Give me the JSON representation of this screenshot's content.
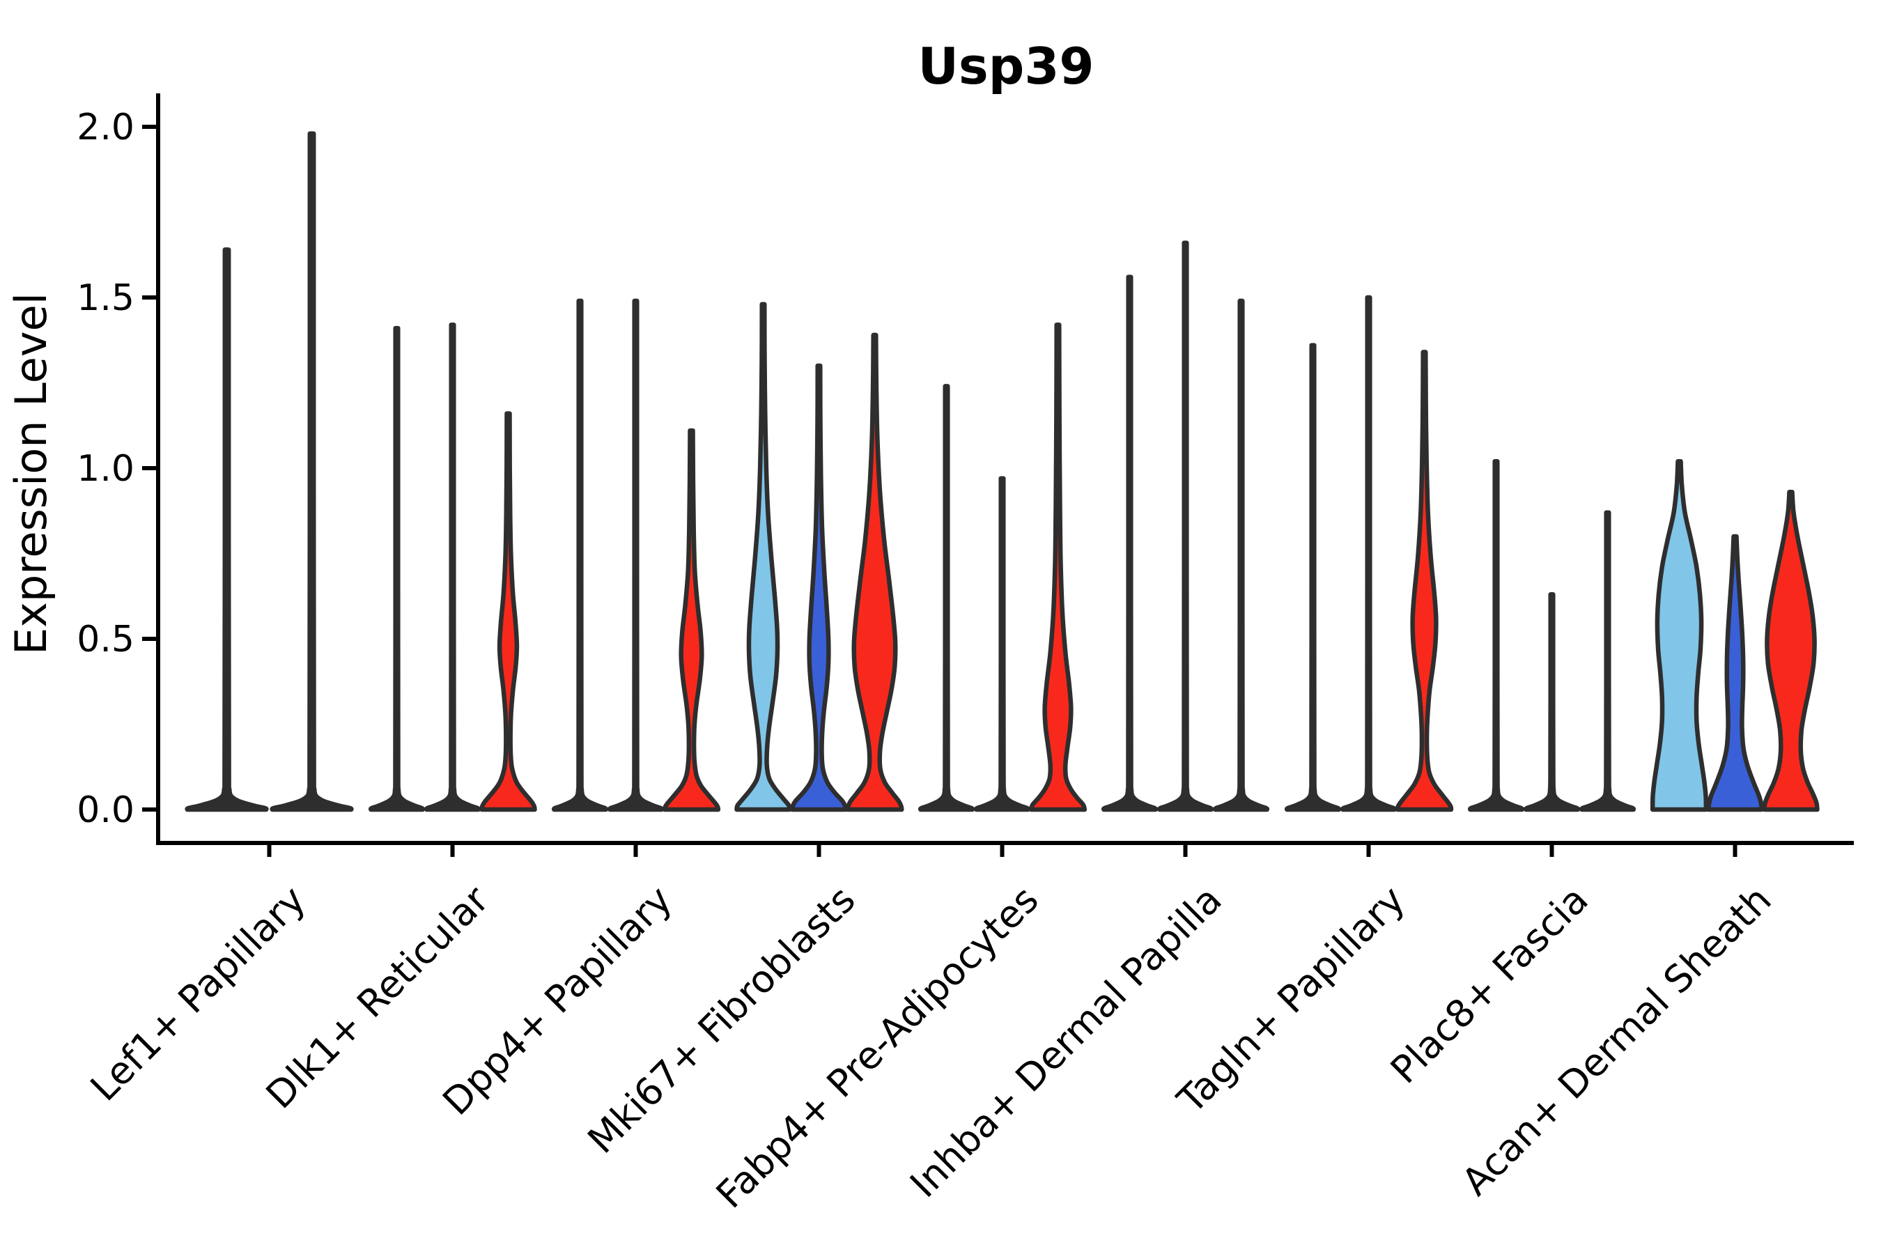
{
  "chart_data": {
    "type": "violin",
    "title": "Usp39",
    "xlabel": "",
    "ylabel": "Expression Level",
    "yticks": [
      "0.0",
      "0.5",
      "1.0",
      "1.5",
      "2.0"
    ],
    "ytick_values": [
      0.0,
      0.5,
      1.0,
      1.5,
      2.0
    ],
    "ylim": [
      0.0,
      2.05
    ],
    "grid": false,
    "legend": "none",
    "categories": [
      "Lef1+ Papillary",
      "Dlk1+ Reticular",
      "Dpp4+ Papillary",
      "Mki67+ Fibroblasts",
      "Fabp4+ Pre-Adipocytes",
      "Inhba+ Dermal Papilla",
      "Tagln+ Papillary",
      "Plac8+ Fascia",
      "Acan+ Dermal Sheath"
    ],
    "colors": {
      "outline": "#2e2e2e",
      "axis": "#000000",
      "red": "#f8291c",
      "light_blue": "#81c5e9",
      "dark_blue": "#3a60d8",
      "spike": "#2e2e2e"
    },
    "spike_flare_profile": [
      [
        0.1,
        0.05
      ],
      [
        0.06,
        0.06
      ],
      [
        0.04,
        0.1
      ],
      [
        0.025,
        0.28
      ],
      [
        0.012,
        0.62
      ],
      [
        0.004,
        0.9
      ],
      [
        0,
        0.93
      ]
    ],
    "groups": [
      {
        "category": "Lef1+ Papillary",
        "violins": [
          {
            "color": "spike",
            "max": 1.64,
            "shape": "spike"
          },
          {
            "color": "spike",
            "max": 1.98,
            "shape": "spike"
          }
        ]
      },
      {
        "category": "Dlk1+ Reticular",
        "violins": [
          {
            "color": "spike",
            "max": 1.41,
            "shape": "spike"
          },
          {
            "color": "spike",
            "max": 1.42,
            "shape": "spike"
          },
          {
            "color": "red",
            "max": 1.16,
            "shape": "body",
            "profile": [
              [
                1.16,
                0.05
              ],
              [
                1.0,
                0.055
              ],
              [
                0.86,
                0.07
              ],
              [
                0.74,
                0.1
              ],
              [
                0.63,
                0.17
              ],
              [
                0.55,
                0.26
              ],
              [
                0.48,
                0.31
              ],
              [
                0.42,
                0.27
              ],
              [
                0.35,
                0.17
              ],
              [
                0.28,
                0.1
              ],
              [
                0.22,
                0.08
              ],
              [
                0.16,
                0.09
              ],
              [
                0.12,
                0.14
              ],
              [
                0.08,
                0.3
              ],
              [
                0.05,
                0.56
              ],
              [
                0.025,
                0.82
              ],
              [
                0.01,
                0.93
              ],
              [
                0,
                0.95
              ]
            ]
          }
        ]
      },
      {
        "category": "Dpp4+ Papillary",
        "violins": [
          {
            "color": "spike",
            "max": 1.49,
            "shape": "spike"
          },
          {
            "color": "spike",
            "max": 1.49,
            "shape": "spike"
          },
          {
            "color": "red",
            "max": 1.11,
            "shape": "body",
            "profile": [
              [
                1.11,
                0.05
              ],
              [
                0.96,
                0.06
              ],
              [
                0.82,
                0.08
              ],
              [
                0.7,
                0.12
              ],
              [
                0.6,
                0.22
              ],
              [
                0.52,
                0.33
              ],
              [
                0.45,
                0.37
              ],
              [
                0.38,
                0.3
              ],
              [
                0.31,
                0.18
              ],
              [
                0.25,
                0.11
              ],
              [
                0.19,
                0.09
              ],
              [
                0.14,
                0.11
              ],
              [
                0.1,
                0.18
              ],
              [
                0.07,
                0.34
              ],
              [
                0.045,
                0.58
              ],
              [
                0.02,
                0.84
              ],
              [
                0.008,
                0.94
              ],
              [
                0,
                0.96
              ]
            ]
          }
        ]
      },
      {
        "category": "Mki67+ Fibroblasts",
        "violins": [
          {
            "color": "light_blue",
            "max": 1.48,
            "shape": "body",
            "profile": [
              [
                1.48,
                0.045
              ],
              [
                1.32,
                0.05
              ],
              [
                1.16,
                0.07
              ],
              [
                1.0,
                0.11
              ],
              [
                0.86,
                0.18
              ],
              [
                0.73,
                0.3
              ],
              [
                0.62,
                0.42
              ],
              [
                0.53,
                0.5
              ],
              [
                0.46,
                0.51
              ],
              [
                0.39,
                0.46
              ],
              [
                0.31,
                0.33
              ],
              [
                0.24,
                0.21
              ],
              [
                0.18,
                0.14
              ],
              [
                0.13,
                0.13
              ],
              [
                0.09,
                0.22
              ],
              [
                0.06,
                0.44
              ],
              [
                0.03,
                0.74
              ],
              [
                0.012,
                0.92
              ],
              [
                0,
                0.95
              ]
            ]
          },
          {
            "color": "dark_blue",
            "max": 1.3,
            "shape": "body",
            "profile": [
              [
                1.3,
                0.045
              ],
              [
                1.14,
                0.05
              ],
              [
                0.98,
                0.07
              ],
              [
                0.83,
                0.11
              ],
              [
                0.7,
                0.19
              ],
              [
                0.59,
                0.28
              ],
              [
                0.5,
                0.34
              ],
              [
                0.43,
                0.34
              ],
              [
                0.36,
                0.28
              ],
              [
                0.29,
                0.18
              ],
              [
                0.23,
                0.12
              ],
              [
                0.17,
                0.1
              ],
              [
                0.12,
                0.14
              ],
              [
                0.08,
                0.3
              ],
              [
                0.05,
                0.56
              ],
              [
                0.025,
                0.84
              ],
              [
                0.01,
                0.94
              ],
              [
                0,
                0.96
              ]
            ]
          },
          {
            "color": "red",
            "max": 1.39,
            "shape": "body",
            "profile": [
              [
                1.39,
                0.045
              ],
              [
                1.24,
                0.06
              ],
              [
                1.08,
                0.1
              ],
              [
                0.93,
                0.19
              ],
              [
                0.79,
                0.34
              ],
              [
                0.67,
                0.52
              ],
              [
                0.57,
                0.66
              ],
              [
                0.49,
                0.74
              ],
              [
                0.42,
                0.72
              ],
              [
                0.35,
                0.6
              ],
              [
                0.28,
                0.42
              ],
              [
                0.22,
                0.27
              ],
              [
                0.17,
                0.19
              ],
              [
                0.12,
                0.2
              ],
              [
                0.08,
                0.36
              ],
              [
                0.05,
                0.62
              ],
              [
                0.025,
                0.86
              ],
              [
                0.01,
                0.95
              ],
              [
                0,
                0.97
              ]
            ]
          }
        ]
      },
      {
        "category": "Fabp4+ Pre-Adipocytes",
        "violins": [
          {
            "color": "spike",
            "max": 1.24,
            "shape": "spike"
          },
          {
            "color": "spike",
            "max": 0.97,
            "shape": "spike"
          },
          {
            "color": "red",
            "max": 1.42,
            "shape": "body",
            "profile": [
              [
                1.42,
                0.045
              ],
              [
                1.24,
                0.05
              ],
              [
                1.05,
                0.06
              ],
              [
                0.88,
                0.075
              ],
              [
                0.72,
                0.1
              ],
              [
                0.58,
                0.16
              ],
              [
                0.46,
                0.27
              ],
              [
                0.37,
                0.4
              ],
              [
                0.3,
                0.47
              ],
              [
                0.24,
                0.44
              ],
              [
                0.18,
                0.34
              ],
              [
                0.13,
                0.27
              ],
              [
                0.09,
                0.3
              ],
              [
                0.06,
                0.46
              ],
              [
                0.035,
                0.68
              ],
              [
                0.015,
                0.9
              ],
              [
                0,
                0.96
              ]
            ]
          }
        ]
      },
      {
        "category": "Inhba+ Dermal Papilla",
        "violins": [
          {
            "color": "spike",
            "max": 1.56,
            "shape": "spike"
          },
          {
            "color": "spike",
            "max": 1.66,
            "shape": "spike"
          },
          {
            "color": "spike",
            "max": 1.49,
            "shape": "spike"
          }
        ]
      },
      {
        "category": "Tagln+ Papillary",
        "violins": [
          {
            "color": "spike",
            "max": 1.36,
            "shape": "spike"
          },
          {
            "color": "spike",
            "max": 1.5,
            "shape": "spike"
          },
          {
            "color": "red",
            "max": 1.34,
            "shape": "body",
            "profile": [
              [
                1.34,
                0.045
              ],
              [
                1.18,
                0.055
              ],
              [
                1.02,
                0.08
              ],
              [
                0.87,
                0.13
              ],
              [
                0.74,
                0.23
              ],
              [
                0.64,
                0.35
              ],
              [
                0.56,
                0.42
              ],
              [
                0.49,
                0.4
              ],
              [
                0.42,
                0.31
              ],
              [
                0.35,
                0.19
              ],
              [
                0.28,
                0.12
              ],
              [
                0.22,
                0.09
              ],
              [
                0.16,
                0.1
              ],
              [
                0.11,
                0.17
              ],
              [
                0.075,
                0.35
              ],
              [
                0.045,
                0.62
              ],
              [
                0.02,
                0.86
              ],
              [
                0.008,
                0.95
              ],
              [
                0,
                0.96
              ]
            ]
          }
        ]
      },
      {
        "category": "Plac8+ Fascia",
        "violins": [
          {
            "color": "spike",
            "max": 1.02,
            "shape": "spike"
          },
          {
            "color": "spike",
            "max": 0.63,
            "shape": "spike"
          },
          {
            "color": "spike",
            "max": 0.87,
            "shape": "spike"
          }
        ]
      },
      {
        "category": "Acan+ Dermal Sheath",
        "violins": [
          {
            "color": "light_blue",
            "max": 1.02,
            "shape": "body",
            "profile": [
              [
                1.02,
                0.05
              ],
              [
                0.95,
                0.09
              ],
              [
                0.87,
                0.2
              ],
              [
                0.79,
                0.42
              ],
              [
                0.71,
                0.62
              ],
              [
                0.63,
                0.74
              ],
              [
                0.55,
                0.79
              ],
              [
                0.47,
                0.76
              ],
              [
                0.4,
                0.68
              ],
              [
                0.33,
                0.62
              ],
              [
                0.26,
                0.62
              ],
              [
                0.19,
                0.7
              ],
              [
                0.13,
                0.81
              ],
              [
                0.08,
                0.9
              ],
              [
                0.04,
                0.95
              ],
              [
                0,
                0.96
              ]
            ]
          },
          {
            "color": "dark_blue",
            "max": 0.8,
            "shape": "body",
            "profile": [
              [
                0.8,
                0.05
              ],
              [
                0.74,
                0.08
              ],
              [
                0.67,
                0.13
              ],
              [
                0.59,
                0.2
              ],
              [
                0.51,
                0.26
              ],
              [
                0.44,
                0.29
              ],
              [
                0.37,
                0.29
              ],
              [
                0.3,
                0.26
              ],
              [
                0.24,
                0.25
              ],
              [
                0.18,
                0.3
              ],
              [
                0.13,
                0.44
              ],
              [
                0.08,
                0.66
              ],
              [
                0.04,
                0.86
              ],
              [
                0.015,
                0.94
              ],
              [
                0,
                0.95
              ]
            ]
          },
          {
            "color": "red",
            "max": 0.93,
            "shape": "body",
            "profile": [
              [
                0.93,
                0.05
              ],
              [
                0.87,
                0.1
              ],
              [
                0.8,
                0.24
              ],
              [
                0.72,
                0.44
              ],
              [
                0.64,
                0.64
              ],
              [
                0.57,
                0.78
              ],
              [
                0.5,
                0.85
              ],
              [
                0.43,
                0.82
              ],
              [
                0.36,
                0.68
              ],
              [
                0.29,
                0.5
              ],
              [
                0.23,
                0.38
              ],
              [
                0.17,
                0.36
              ],
              [
                0.12,
                0.44
              ],
              [
                0.08,
                0.6
              ],
              [
                0.045,
                0.8
              ],
              [
                0.02,
                0.92
              ],
              [
                0,
                0.95
              ]
            ]
          }
        ]
      }
    ]
  }
}
